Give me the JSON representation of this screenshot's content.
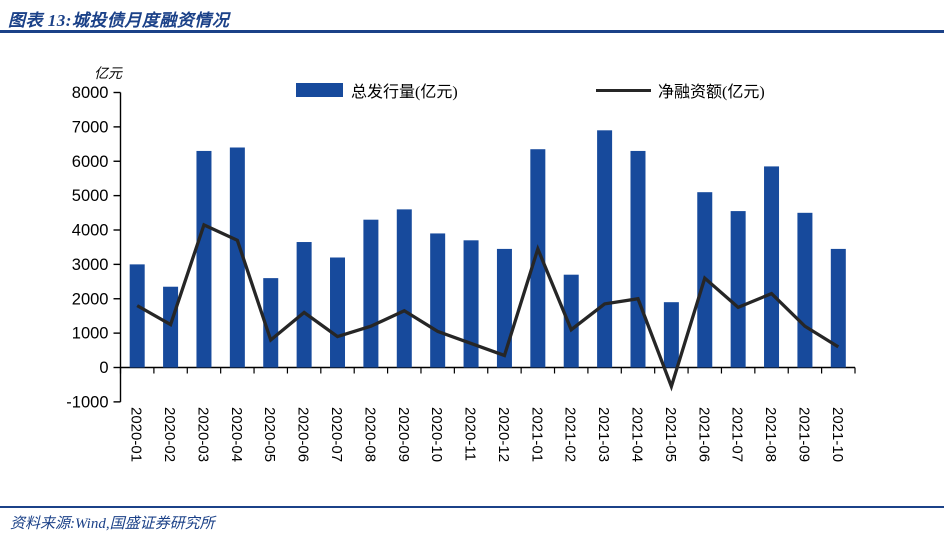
{
  "theme": {
    "accent": "#1B4188",
    "bar_color": "#174A9C",
    "line_color": "#262626",
    "axis_color": "#000000"
  },
  "header": {
    "title": "图表 13:城投债月度融资情况"
  },
  "chart_data": {
    "type": "bar",
    "title": "",
    "categories": [
      "2020-01",
      "2020-02",
      "2020-03",
      "2020-04",
      "2020-05",
      "2020-06",
      "2020-07",
      "2020-08",
      "2020-09",
      "2020-10",
      "2020-11",
      "2020-12",
      "2021-01",
      "2021-02",
      "2021-03",
      "2021-04",
      "2021-05",
      "2021-06",
      "2021-07",
      "2021-08",
      "2021-09",
      "2021-10"
    ],
    "series": [
      {
        "name": "总发行量(亿元)",
        "type": "bar",
        "color": "#174A9C",
        "values": [
          3000,
          2350,
          6300,
          6400,
          2600,
          3650,
          3200,
          4300,
          4600,
          3900,
          3700,
          3450,
          6350,
          2700,
          6900,
          6300,
          1900,
          5100,
          4550,
          5850,
          4500,
          3450
        ]
      },
      {
        "name": "净融资额(亿元)",
        "type": "line",
        "color": "#262626",
        "values": [
          1800,
          1250,
          4150,
          3700,
          800,
          1600,
          900,
          1200,
          1650,
          1050,
          700,
          350,
          3450,
          1100,
          1850,
          2000,
          -550,
          2600,
          1750,
          2150,
          1200,
          600
        ]
      }
    ],
    "y_axis": {
      "unit": "亿元",
      "min": -1000,
      "max": 8000,
      "step": 1000,
      "tick_labels": [
        "8000",
        "7000",
        "6000",
        "5000",
        "4000",
        "3000",
        "2000",
        "1000",
        "0",
        "-1000"
      ]
    },
    "x_axis": {
      "label_rotation_deg": 90
    },
    "legend_position": "top",
    "grid": false
  },
  "footer": {
    "source": "资料来源:Wind,国盛证券研究所"
  }
}
